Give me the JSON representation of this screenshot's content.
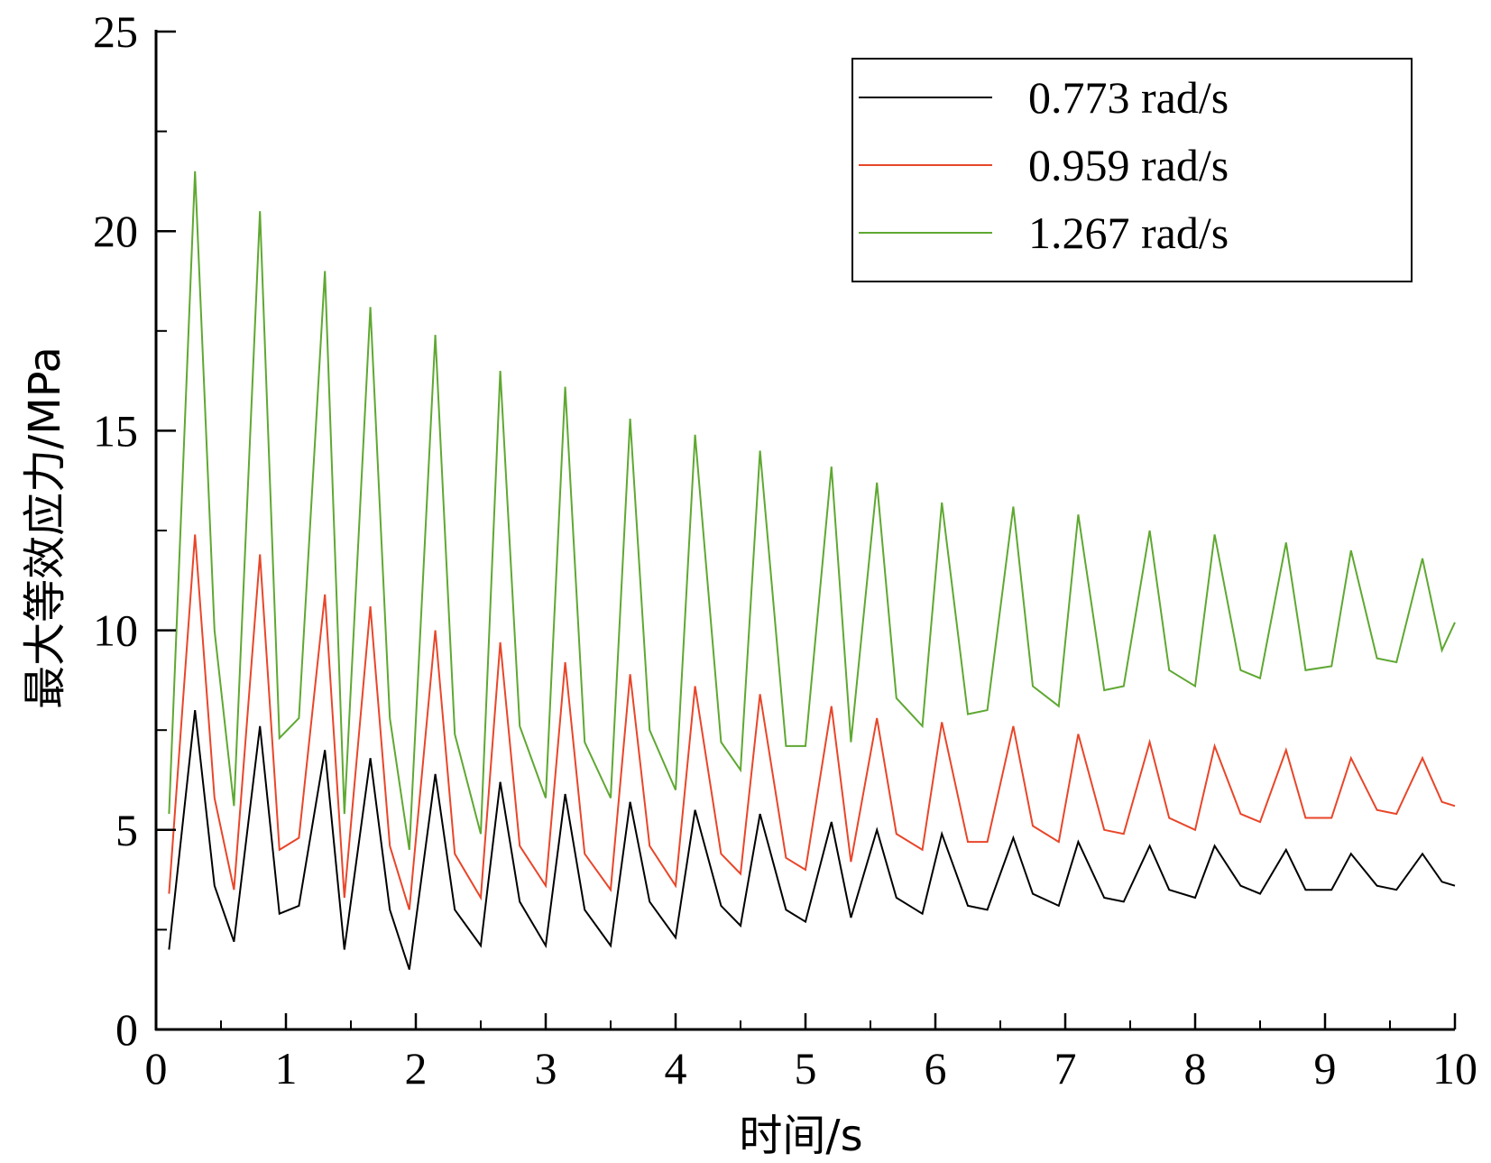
{
  "chart_data": {
    "type": "line",
    "xlabel": "时间/s",
    "ylabel": "最大等效应力/MPa",
    "xlim": [
      0,
      10
    ],
    "ylim": [
      0,
      25
    ],
    "xticks": [
      "0",
      "1",
      "2",
      "3",
      "4",
      "5",
      "6",
      "7",
      "8",
      "9",
      "10"
    ],
    "yticks": [
      "0",
      "5",
      "10",
      "15",
      "20",
      "25"
    ],
    "grid": false,
    "legend_position": "top-right",
    "x": [
      0.1,
      0.3,
      0.45,
      0.6,
      0.8,
      0.95,
      1.1,
      1.3,
      1.45,
      1.65,
      1.8,
      1.95,
      2.15,
      2.3,
      2.5,
      2.65,
      2.8,
      3.0,
      3.15,
      3.3,
      3.5,
      3.65,
      3.8,
      4.0,
      4.15,
      4.35,
      4.5,
      4.65,
      4.85,
      5.0,
      5.2,
      5.35,
      5.55,
      5.7,
      5.9,
      6.05,
      6.25,
      6.4,
      6.6,
      6.75,
      6.95,
      7.1,
      7.3,
      7.45,
      7.65,
      7.8,
      8.0,
      8.15,
      8.35,
      8.5,
      8.7,
      8.85,
      9.05,
      9.2,
      9.4,
      9.55,
      9.75,
      9.9,
      10.0
    ],
    "series": [
      {
        "name": "0.773 rad/s",
        "color": "#000000",
        "values": [
          2.0,
          8.0,
          3.6,
          2.2,
          7.6,
          2.9,
          3.1,
          7.0,
          2.0,
          6.8,
          3.0,
          1.5,
          6.4,
          3.0,
          2.1,
          6.2,
          3.2,
          2.1,
          5.9,
          3.0,
          2.1,
          5.7,
          3.2,
          2.3,
          5.5,
          3.1,
          2.6,
          5.4,
          3.0,
          2.7,
          5.2,
          2.8,
          5.0,
          3.3,
          2.9,
          4.9,
          3.1,
          3.0,
          4.8,
          3.4,
          3.1,
          4.7,
          3.3,
          3.2,
          4.6,
          3.5,
          3.3,
          4.6,
          3.6,
          3.4,
          4.5,
          3.5,
          3.5,
          4.4,
          3.6,
          3.5,
          4.4,
          3.7,
          3.6
        ]
      },
      {
        "name": "0.959 rad/s",
        "color": "#e8462a",
        "values": [
          3.4,
          12.4,
          5.8,
          3.5,
          11.9,
          4.5,
          4.8,
          10.9,
          3.3,
          10.6,
          4.6,
          3.0,
          10.0,
          4.4,
          3.3,
          9.7,
          4.6,
          3.6,
          9.2,
          4.4,
          3.5,
          8.9,
          4.6,
          3.6,
          8.6,
          4.4,
          3.9,
          8.4,
          4.3,
          4.0,
          8.1,
          4.2,
          7.8,
          4.9,
          4.5,
          7.7,
          4.7,
          4.7,
          7.6,
          5.1,
          4.7,
          7.4,
          5.0,
          4.9,
          7.2,
          5.3,
          5.0,
          7.1,
          5.4,
          5.2,
          7.0,
          5.3,
          5.3,
          6.8,
          5.5,
          5.4,
          6.8,
          5.7,
          5.6
        ]
      },
      {
        "name": "1.267 rad/s",
        "color": "#5fa832",
        "values": [
          5.4,
          21.5,
          10.0,
          5.6,
          20.5,
          7.3,
          7.8,
          19.0,
          5.4,
          18.1,
          7.8,
          4.5,
          17.4,
          7.4,
          4.9,
          16.5,
          7.6,
          5.8,
          16.1,
          7.2,
          5.8,
          15.3,
          7.5,
          6.0,
          14.9,
          7.2,
          6.5,
          14.5,
          7.1,
          7.1,
          14.1,
          7.2,
          13.7,
          8.3,
          7.6,
          13.2,
          7.9,
          8.0,
          13.1,
          8.6,
          8.1,
          12.9,
          8.5,
          8.6,
          12.5,
          9.0,
          8.6,
          12.4,
          9.0,
          8.8,
          12.2,
          9.0,
          9.1,
          12.0,
          9.3,
          9.2,
          11.8,
          9.5,
          10.2
        ]
      }
    ]
  }
}
